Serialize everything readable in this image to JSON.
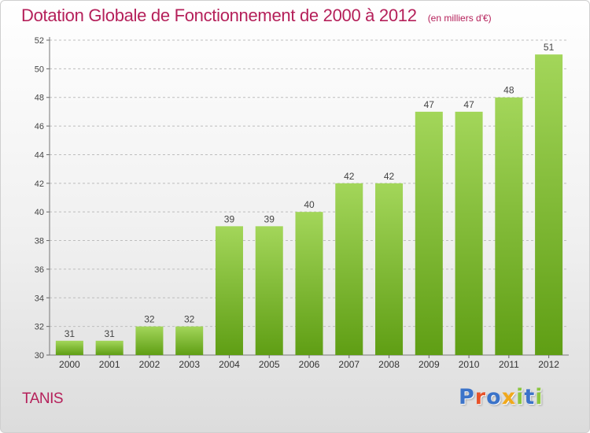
{
  "header": {
    "title": "Dotation Globale de Fonctionnement de 2000 à 2012",
    "subtitle": "(en milliers d'€)"
  },
  "footer": {
    "commune": "TANIS",
    "logo_text": "Proxiti"
  },
  "colors": {
    "title": "#b5205a",
    "bar_top": "#a3d65a",
    "bar_bottom": "#5f9e14",
    "grid": "#bdbdbd",
    "logo_letters": [
      "#3b73c9",
      "#e8532a",
      "#3b73c9",
      "#f0a81c",
      "#8cc63f",
      "#3b73c9",
      "#8cc63f"
    ]
  },
  "chart_data": {
    "type": "bar",
    "categories": [
      "2000",
      "2001",
      "2002",
      "2003",
      "2004",
      "2005",
      "2006",
      "2007",
      "2008",
      "2009",
      "2010",
      "2011",
      "2012"
    ],
    "values": [
      31,
      31,
      32,
      32,
      39,
      39,
      40,
      42,
      42,
      47,
      47,
      48,
      51
    ],
    "data_labels": [
      "31",
      "31",
      "32",
      "32",
      "39",
      "39",
      "40",
      "42",
      "42",
      "47",
      "47",
      "48",
      "51"
    ],
    "ylim": [
      30,
      52
    ],
    "yticks": [
      30,
      32,
      34,
      36,
      38,
      40,
      42,
      44,
      46,
      48,
      50,
      52
    ],
    "ytick_labels": [
      "30",
      "32",
      "34",
      "36",
      "38",
      "40",
      "42",
      "44",
      "46",
      "48",
      "50",
      "52"
    ],
    "grid": "horizontal dashed",
    "legend": "none"
  }
}
